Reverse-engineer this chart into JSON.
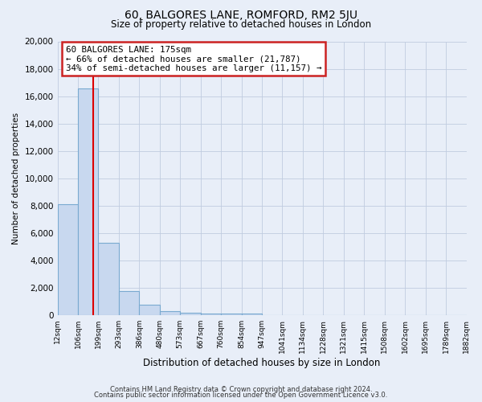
{
  "title": "60, BALGORES LANE, ROMFORD, RM2 5JU",
  "subtitle": "Size of property relative to detached houses in London",
  "xlabel": "Distribution of detached houses by size in London",
  "ylabel": "Number of detached properties",
  "bin_labels": [
    "12sqm",
    "106sqm",
    "199sqm",
    "293sqm",
    "386sqm",
    "480sqm",
    "573sqm",
    "667sqm",
    "760sqm",
    "854sqm",
    "947sqm",
    "1041sqm",
    "1134sqm",
    "1228sqm",
    "1321sqm",
    "1415sqm",
    "1508sqm",
    "1602sqm",
    "1695sqm",
    "1789sqm",
    "1882sqm"
  ],
  "bar_heights": [
    8100,
    16550,
    5300,
    1750,
    780,
    290,
    200,
    140,
    100,
    95,
    0,
    0,
    0,
    0,
    0,
    0,
    0,
    0,
    0,
    0
  ],
  "bar_color": "#c8d8ef",
  "bar_edge_color": "#7aaad0",
  "ylim": [
    0,
    20000
  ],
  "yticks": [
    0,
    2000,
    4000,
    6000,
    8000,
    10000,
    12000,
    14000,
    16000,
    18000,
    20000
  ],
  "annotation_title": "60 BALGORES LANE: 175sqm",
  "annotation_line1": "← 66% of detached houses are smaller (21,787)",
  "annotation_line2": "34% of semi-detached houses are larger (11,157) →",
  "footer1": "Contains HM Land Registry data © Crown copyright and database right 2024.",
  "footer2": "Contains public sector information licensed under the Open Government Licence v3.0.",
  "bg_color": "#e8eef8",
  "plot_bg_color": "#e8eef8",
  "grid_color": "#c0cce0",
  "red_line_color": "#dd0000",
  "annotation_border_color": "#cc2222"
}
